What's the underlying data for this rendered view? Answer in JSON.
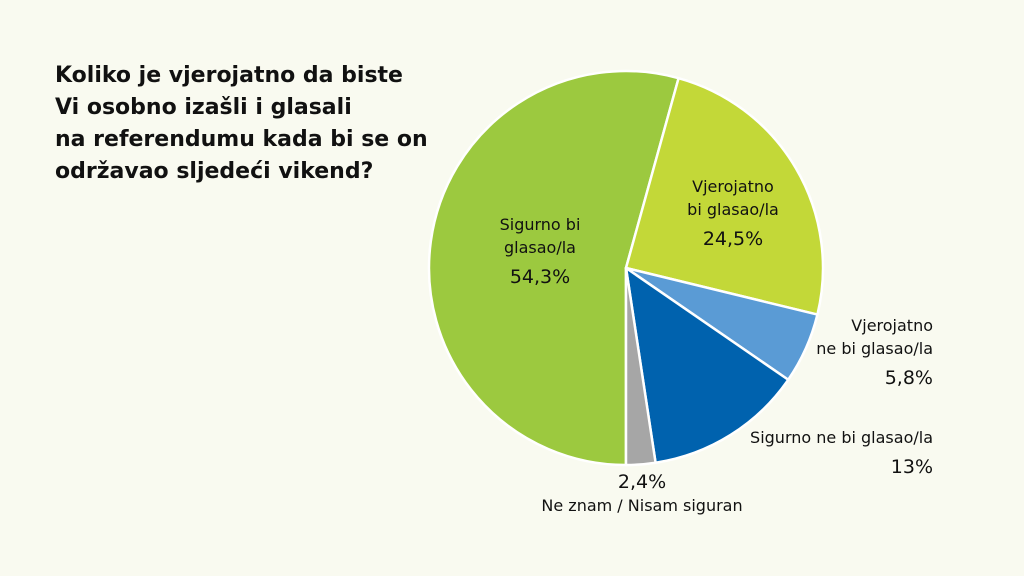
{
  "title_lines": [
    "Koliko je vjerojatno da biste",
    "Vi osobno izašli i glasali",
    "na referendumu kada bi se on",
    "održavao sljedeći vikend?"
  ],
  "chart_data": {
    "type": "pie",
    "title": "Koliko je vjerojatno da biste Vi osobno izašli i glasali na referendumu kada bi se on održavao sljedeći vikend?",
    "series": [
      {
        "name": "Sigurno bi glasao/la",
        "label_lines": [
          "Sigurno bi",
          "glasao/la"
        ],
        "value": 54.3,
        "value_label": "54,3%",
        "color": "#9cc93f"
      },
      {
        "name": "Vjerojatno bi glasao/la",
        "label_lines": [
          "Vjerojatno",
          "bi glasao/la"
        ],
        "value": 24.5,
        "value_label": "24,5%",
        "color": "#c3d838"
      },
      {
        "name": "Vjerojatno ne bi glasao/la",
        "label_lines": [
          "Vjerojatno",
          "ne bi glasao/la"
        ],
        "value": 5.8,
        "value_label": "5,8%",
        "color": "#5a9bd5"
      },
      {
        "name": "Sigurno ne bi glasao/la",
        "label_lines": [
          "Sigurno ne bi glasao/la"
        ],
        "value": 13,
        "value_label": "13%",
        "color": "#0062ae"
      },
      {
        "name": "Ne znam / Nisam siguran",
        "label_lines": [
          "Ne znam / Nisam siguran"
        ],
        "value": 2.4,
        "value_label": "2,4%",
        "color": "#a6a6a6"
      }
    ],
    "start_angle_deg": 180,
    "direction": "clockwise",
    "legend": "none"
  }
}
